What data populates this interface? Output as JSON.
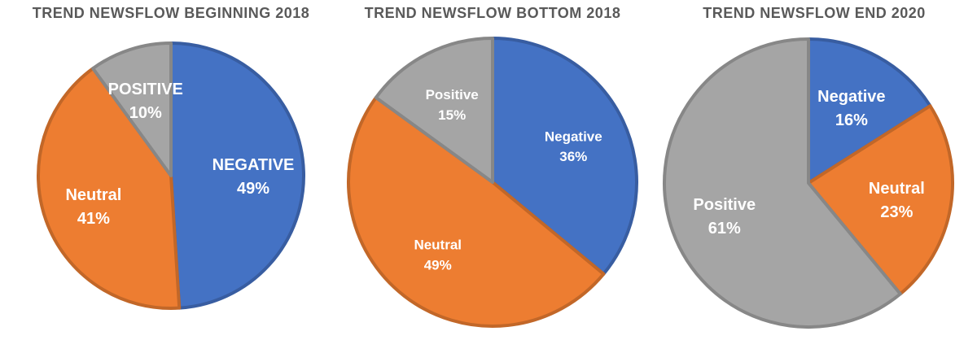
{
  "chart_data": [
    {
      "type": "pie",
      "title": "TREND NEWSFLOW BEGINNING 2018",
      "slices": [
        {
          "label": "NEGATIVE",
          "value": 49,
          "value_label": "49%",
          "color": "#4472C4"
        },
        {
          "label": "Neutral",
          "value": 41,
          "value_label": "41%",
          "color": "#ED7D31"
        },
        {
          "label": "POSITIVE",
          "value": 10,
          "value_label": "10%",
          "color": "#A5A5A5"
        }
      ]
    },
    {
      "type": "pie",
      "title": "TREND NEWSFLOW BOTTOM 2018",
      "slices": [
        {
          "label": "Negative",
          "value": 36,
          "value_label": "36%",
          "color": "#4472C4"
        },
        {
          "label": "Neutral",
          "value": 49,
          "value_label": "49%",
          "color": "#ED7D31"
        },
        {
          "label": "Positive",
          "value": 15,
          "value_label": "15%",
          "color": "#A5A5A5"
        }
      ]
    },
    {
      "type": "pie",
      "title": "TREND NEWSFLOW END 2020",
      "slices": [
        {
          "label": "Negative",
          "value": 16,
          "value_label": "16%",
          "color": "#4472C4"
        },
        {
          "label": "Neutral",
          "value": 23,
          "value_label": "23%",
          "color": "#ED7D31"
        },
        {
          "label": "Positive",
          "value": 61,
          "value_label": "61%",
          "color": "#A5A5A5"
        }
      ]
    }
  ]
}
